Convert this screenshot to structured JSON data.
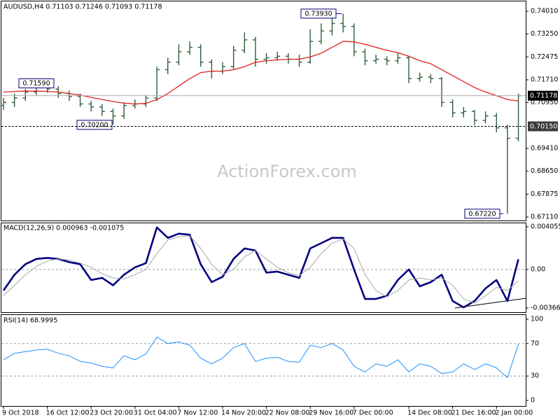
{
  "chart_data": [
    {
      "type": "ohlc",
      "title": "AUDUSD,H4  0.71103 0.71246 0.71093 0.71178",
      "watermark": "ActionForex.com",
      "color": "#2f5f3a",
      "categories": [
        "9 Oct 2018",
        null,
        null,
        null,
        "16 Oct 12:00",
        null,
        null,
        null,
        "23 Oct 20:00",
        null,
        null,
        null,
        "31 Oct 04:00",
        null,
        null,
        null,
        "7 Nov 12:00",
        null,
        null,
        null,
        "14 Nov 20:00",
        null,
        null,
        null,
        "22 Nov 08:00",
        null,
        null,
        null,
        "29 Nov 16:00",
        null,
        null,
        null,
        "7 Dec 00:00",
        null,
        null,
        null,
        null,
        "14 Dec 08:00",
        null,
        null,
        null,
        "21 Dec 16:00",
        null,
        null,
        null,
        "2 Jan 00:00",
        null,
        null
      ],
      "open": [
        0.7085,
        0.7095,
        0.711,
        0.713,
        0.7145,
        0.714,
        0.7125,
        0.7115,
        0.709,
        0.708,
        0.7065,
        0.705,
        0.7085,
        0.709,
        0.711,
        0.7205,
        0.723,
        0.7265,
        0.728,
        0.723,
        0.72,
        0.7215,
        0.727,
        0.7305,
        0.724,
        0.7245,
        0.725,
        0.724,
        0.723,
        0.73,
        0.7335,
        0.736,
        0.735,
        0.7265,
        0.7235,
        0.724,
        0.7235,
        0.7245,
        0.7175,
        0.718,
        0.7175,
        0.7095,
        0.706,
        0.7065,
        0.7035,
        0.705,
        0.701,
        0.6975
      ],
      "high": [
        0.711,
        0.7125,
        0.714,
        0.7155,
        0.7159,
        0.715,
        0.7135,
        0.7125,
        0.71,
        0.709,
        0.7075,
        0.7095,
        0.7105,
        0.712,
        0.7215,
        0.7245,
        0.729,
        0.73,
        0.729,
        0.724,
        0.723,
        0.7285,
        0.733,
        0.7315,
        0.726,
        0.7265,
        0.726,
        0.7255,
        0.734,
        0.736,
        0.738,
        0.7393,
        0.736,
        0.7275,
        0.7255,
        0.725,
        0.726,
        0.725,
        0.7195,
        0.719,
        0.718,
        0.7105,
        0.708,
        0.707,
        0.7065,
        0.706,
        0.702,
        0.7125
      ],
      "low": [
        0.707,
        0.708,
        0.71,
        0.712,
        0.7128,
        0.711,
        0.71,
        0.708,
        0.7065,
        0.705,
        0.702,
        0.704,
        0.7075,
        0.708,
        0.71,
        0.719,
        0.722,
        0.7255,
        0.7215,
        0.7175,
        0.719,
        0.7205,
        0.726,
        0.7215,
        0.7225,
        0.7235,
        0.7225,
        0.7215,
        0.7225,
        0.729,
        0.732,
        0.733,
        0.725,
        0.722,
        0.7225,
        0.722,
        0.7225,
        0.716,
        0.7165,
        0.716,
        0.708,
        0.7045,
        0.7045,
        0.702,
        0.7025,
        0.6995,
        0.6722,
        0.6965
      ],
      "close": [
        0.7095,
        0.711,
        0.713,
        0.7145,
        0.714,
        0.7125,
        0.7115,
        0.709,
        0.708,
        0.7065,
        0.705,
        0.7085,
        0.709,
        0.711,
        0.7205,
        0.723,
        0.7265,
        0.728,
        0.723,
        0.72,
        0.7215,
        0.727,
        0.7305,
        0.724,
        0.7245,
        0.725,
        0.724,
        0.723,
        0.73,
        0.7335,
        0.736,
        0.735,
        0.7265,
        0.7235,
        0.724,
        0.7235,
        0.7245,
        0.7175,
        0.718,
        0.7175,
        0.7095,
        0.706,
        0.7065,
        0.7035,
        0.705,
        0.701,
        0.6975,
        0.7118
      ],
      "series": [
        {
          "color": "#e0201e",
          "width": 1.3,
          "values": [
            0.713,
            0.7132,
            0.7133,
            0.7133,
            0.7132,
            0.713,
            0.7125,
            0.712,
            0.7112,
            0.7105,
            0.7098,
            0.7093,
            0.709,
            0.7092,
            0.7105,
            0.7125,
            0.715,
            0.7175,
            0.7195,
            0.72,
            0.72,
            0.7205,
            0.7215,
            0.723,
            0.7235,
            0.7238,
            0.724,
            0.724,
            0.7248,
            0.726,
            0.728,
            0.73,
            0.7298,
            0.729,
            0.728,
            0.727,
            0.7262,
            0.725,
            0.7235,
            0.7225,
            0.7205,
            0.7185,
            0.7165,
            0.7145,
            0.713,
            0.7118,
            0.7105,
            0.71
          ]
        }
      ],
      "ylim": [
        0.66993,
        0.74339
      ],
      "yticks": [
        {
          "value": 0.7401,
          "label": "0.74010"
        },
        {
          "value": 0.7325,
          "label": "0.73250"
        },
        0.72475,
        {
          "value": 0.7171,
          "label": "0.71710"
        },
        {
          "value": 0.7095,
          "label": "0.70950"
        },
        {
          "value": 0.6941,
          "label": "0.69410"
        },
        {
          "value": 0.6865,
          "label": "0.68650"
        },
        0.67875,
        {
          "value": 0.6711,
          "label": "0.67110"
        }
      ],
      "levels": [
        {
          "value": 0.71178,
          "label": "0.71178",
          "color": "#000000",
          "dashed": false
        },
        {
          "value": 0.7015,
          "label": "0.70150",
          "color": "#3a3a3a",
          "dashed": true
        }
      ],
      "annotations": [
        {
          "value": 0.7159,
          "label": "0.71590"
        },
        {
          "value": 0.702,
          "label": "0.70200"
        },
        {
          "value": 0.7393,
          "label": "0.73930"
        },
        {
          "value": 0.6722,
          "label": "0.67220"
        }
      ]
    },
    {
      "type": "line",
      "title": "MACD(12,26,9) 0.000963 -0.001075",
      "series": [
        {
          "color": "#000080",
          "width": 2.6,
          "values": [
            -0.002,
            -0.0005,
            0.0005,
            0.001,
            0.0011,
            0.001,
            0.0007,
            0.0005,
            -0.001,
            -0.0008,
            -0.0015,
            -0.0005,
            0.0002,
            0.0006,
            0.004,
            0.003,
            0.0034,
            0.0033,
            0.0005,
            -0.0012,
            -0.0007,
            0.001,
            0.002,
            0.0018,
            -0.0003,
            -0.0002,
            -0.0005,
            -0.0008,
            0.002,
            0.0025,
            0.003,
            0.003,
            0.0,
            -0.0028,
            -0.0028,
            -0.0025,
            -0.001,
            0.0,
            -0.0016,
            -0.0012,
            -0.0005,
            -0.003,
            -0.0036,
            -0.003,
            -0.0018,
            -0.001,
            -0.003,
            0.000963
          ]
        },
        {
          "color": "#a8a8a8",
          "width": 1,
          "values": [
            -0.0025,
            -0.0015,
            -0.0005,
            0.0003,
            0.0008,
            0.001,
            0.0009,
            0.0006,
            0.0002,
            -0.0004,
            -0.0008,
            -0.0009,
            -0.0005,
            0.0,
            0.0015,
            0.0028,
            0.0031,
            0.0032,
            0.002,
            0.0005,
            -0.0005,
            0.0,
            0.0012,
            0.0018,
            0.001,
            0.0002,
            -0.0003,
            -0.0006,
            0.0002,
            0.0015,
            0.0025,
            0.0029,
            0.002,
            -0.0005,
            -0.002,
            -0.0026,
            -0.002,
            -0.001,
            -0.0008,
            -0.001,
            -0.0008,
            -0.0015,
            -0.0028,
            -0.0032,
            -0.0025,
            -0.0017,
            -0.002,
            -0.001075
          ]
        }
      ],
      "ylim": [
        -0.004061,
        0.004454
      ],
      "yticks": [
        0.004055,
        {
          "value": 0,
          "label": "0.00"
        },
        -0.003662
      ],
      "levels": [
        0
      ]
    },
    {
      "type": "line",
      "title": "RSI(14) 68.9995",
      "series": [
        {
          "color": "#1e90ff",
          "width": 1,
          "values": [
            50,
            58,
            60,
            62,
            63,
            58,
            55,
            48,
            46,
            42,
            40,
            55,
            50,
            57,
            78,
            70,
            72,
            68,
            52,
            45,
            52,
            65,
            70,
            48,
            52,
            53,
            48,
            47,
            68,
            65,
            70,
            62,
            42,
            35,
            45,
            42,
            50,
            35,
            45,
            42,
            33,
            35,
            45,
            38,
            45,
            40,
            28,
            69
          ]
        }
      ],
      "ylim": [
        -6.9,
        106
      ],
      "yticks": [
        100,
        70,
        30,
        0
      ],
      "levels": [
        70,
        30
      ]
    }
  ]
}
